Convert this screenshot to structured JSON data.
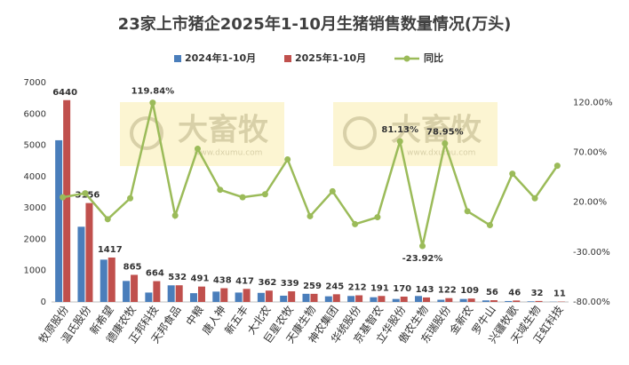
{
  "chart_data": {
    "type": "bar-line",
    "title": "23家上市猪企2025年1-10月生猪销售数量情况(万头)",
    "watermark": {
      "text": "大畜牧",
      "url": "www.dxumu.com"
    },
    "categories": [
      "牧原股份",
      "温氏股份",
      "新希望",
      "德康农牧",
      "正邦科技",
      "天邦食品",
      "中粮",
      "唐人神",
      "新五丰",
      "大北农",
      "巨星农牧",
      "天康生物",
      "神农集团",
      "华统股份",
      "京基智农",
      "立华股份",
      "傲农生物",
      "东瑞股份",
      "金新农",
      "罗牛山",
      "兴疆牧歌",
      "天域生物",
      "正虹科技"
    ],
    "series": [
      {
        "name": "2024年1-10月",
        "color": "#4a7ebb",
        "values": [
          5160,
          2400,
          1350,
          670,
          300,
          530,
          280,
          330,
          300,
          290,
          200,
          260,
          180,
          190,
          150,
          95,
          190,
          70,
          95,
          50,
          30,
          20,
          7
        ]
      },
      {
        "name": "2025年1-10月",
        "color": "#c0504d",
        "values": [
          6440,
          3156,
          1417,
          865,
          664,
          532,
          491,
          438,
          417,
          362,
          339,
          259,
          245,
          212,
          191,
          170,
          143,
          122,
          109,
          56,
          46,
          32,
          11
        ]
      },
      {
        "name": "同比",
        "color": "#9bbb59",
        "axis": "y2",
        "values": [
          25,
          29,
          3,
          24,
          119.84,
          6.6,
          73.6,
          32.5,
          25,
          28,
          63,
          6,
          31,
          -2,
          5,
          81.13,
          -23.92,
          78.95,
          11,
          -3,
          48.6,
          24,
          56.6
        ],
        "value_labels": [
          null,
          null,
          null,
          null,
          "119.84%",
          null,
          null,
          null,
          null,
          null,
          null,
          null,
          null,
          null,
          null,
          "81.13%",
          "-23.92%",
          "78.95%",
          null,
          null,
          null,
          null,
          null
        ]
      }
    ],
    "ylim": [
      0,
      7000
    ],
    "yticks": [
      0,
      1000,
      2000,
      3000,
      4000,
      5000,
      6000,
      7000
    ],
    "y2lim": [
      -80,
      140
    ],
    "y2ticks": [
      {
        "value": -80,
        "label": "-80.00%"
      },
      {
        "value": -30,
        "label": "-30.00%"
      },
      {
        "value": 20,
        "label": "20.00%"
      },
      {
        "value": 70,
        "label": "70.00%"
      },
      {
        "value": 120,
        "label": "120.00%"
      }
    ],
    "legend": "top",
    "grid": false
  }
}
